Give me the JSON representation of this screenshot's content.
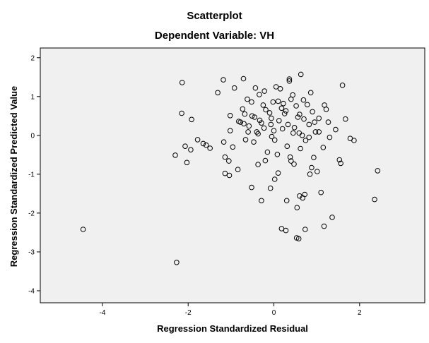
{
  "chart_data": {
    "type": "scatter",
    "title": "Scatterplot",
    "subtitle": "Dependent Variable: VH",
    "xlabel": "Regression Standardized Residual",
    "ylabel": "Regression Standardized Predicted Value",
    "xlim": [
      -5.45,
      3.52
    ],
    "ylim": [
      -4.31,
      2.25
    ],
    "xticks": [
      -4,
      -2,
      0,
      2
    ],
    "yticks": [
      2,
      1,
      0,
      -1,
      -2,
      -3,
      -4
    ],
    "grid": false,
    "colors": {
      "plot_bg": "#f0f0f0",
      "point": "#000000",
      "page_bg": "#ffffff"
    },
    "points": [
      [
        -4.45,
        -2.42
      ],
      [
        -2.27,
        -3.27
      ],
      [
        -2.3,
        -0.51
      ],
      [
        -2.14,
        1.36
      ],
      [
        -2.15,
        0.57
      ],
      [
        -2.07,
        -0.28
      ],
      [
        -2.03,
        -0.7
      ],
      [
        -1.94,
        -0.37
      ],
      [
        -1.92,
        0.41
      ],
      [
        -1.78,
        -0.11
      ],
      [
        -1.65,
        -0.21
      ],
      [
        -1.58,
        -0.25
      ],
      [
        -1.49,
        -0.33
      ],
      [
        -1.31,
        1.1
      ],
      [
        -1.18,
        1.43
      ],
      [
        -1.17,
        -0.17
      ],
      [
        -1.14,
        -0.56
      ],
      [
        -1.14,
        -0.98
      ],
      [
        -1.05,
        -0.66
      ],
      [
        -1.04,
        -1.03
      ],
      [
        -1.02,
        0.12
      ],
      [
        -1.02,
        0.51
      ],
      [
        -0.96,
        -0.3
      ],
      [
        -0.92,
        1.22
      ],
      [
        -0.82,
        0.36
      ],
      [
        -0.78,
        0.34
      ],
      [
        -0.73,
        0.68
      ],
      [
        -0.71,
        1.46
      ],
      [
        -0.7,
        0.3
      ],
      [
        -0.68,
        0.55
      ],
      [
        -0.66,
        -0.11
      ],
      [
        -0.62,
        0.93
      ],
      [
        -0.58,
        0.24
      ],
      [
        -0.51,
        0.5
      ],
      [
        -0.45,
        0.47
      ],
      [
        -0.4,
        0.09
      ],
      [
        -0.37,
        0.04
      ],
      [
        -0.33,
        0.39
      ],
      [
        -0.29,
        0.32
      ],
      [
        -0.25,
        0.78
      ],
      [
        -0.22,
        1.14
      ],
      [
        -0.19,
        0.66
      ],
      [
        -0.15,
        -0.43
      ],
      [
        -0.1,
        0.58
      ],
      [
        -0.07,
        0.28
      ],
      [
        -0.05,
        -0.03
      ],
      [
        -0.02,
        0.86
      ],
      [
        0.02,
        -0.12
      ],
      [
        0.05,
        1.25
      ],
      [
        0.08,
        -0.49
      ],
      [
        0.1,
        0.88
      ],
      [
        0.15,
        1.2
      ],
      [
        0.18,
        0.7
      ],
      [
        0.22,
        0.82
      ],
      [
        0.25,
        0.56
      ],
      [
        0.28,
        0.63
      ],
      [
        0.33,
        0.28
      ],
      [
        0.36,
        1.45
      ],
      [
        0.4,
        0.93
      ],
      [
        0.44,
        1.04
      ],
      [
        0.48,
        0.2
      ],
      [
        0.52,
        0.76
      ],
      [
        0.56,
        0.47
      ],
      [
        0.59,
        0.06
      ],
      [
        0.63,
        1.57
      ],
      [
        0.66,
        0.0
      ],
      [
        0.7,
        0.42
      ],
      [
        0.74,
        -0.13
      ],
      [
        0.78,
        0.79
      ],
      [
        0.82,
        0.28
      ],
      [
        0.86,
        1.1
      ],
      [
        0.9,
        0.61
      ],
      [
        0.93,
        -0.57
      ],
      [
        0.97,
        0.09
      ],
      [
        1.01,
        -0.93
      ],
      [
        1.05,
        0.44
      ],
      [
        1.1,
        -1.47
      ],
      [
        1.15,
        -0.31
      ],
      [
        1.22,
        0.67
      ],
      [
        1.27,
        0.34
      ],
      [
        1.3,
        -0.05
      ],
      [
        1.36,
        -2.11
      ],
      [
        1.44,
        0.15
      ],
      [
        1.53,
        -0.63
      ],
      [
        1.56,
        -0.72
      ],
      [
        1.6,
        1.29
      ],
      [
        1.67,
        0.42
      ],
      [
        1.78,
        -0.08
      ],
      [
        1.87,
        -0.13
      ],
      [
        2.35,
        -1.65
      ],
      [
        2.42,
        -0.91
      ],
      [
        -0.52,
        -1.34
      ],
      [
        -0.37,
        -0.75
      ],
      [
        -0.29,
        -1.68
      ],
      [
        -0.2,
        -0.65
      ],
      [
        -0.08,
        -1.36
      ],
      [
        0.02,
        -1.13
      ],
      [
        0.1,
        -0.97
      ],
      [
        0.18,
        -2.4
      ],
      [
        0.28,
        -2.45
      ],
      [
        0.38,
        -0.56
      ],
      [
        0.47,
        -0.74
      ],
      [
        0.54,
        -1.86
      ],
      [
        0.6,
        -1.56
      ],
      [
        0.67,
        -1.61
      ],
      [
        0.73,
        -2.42
      ],
      [
        0.84,
        -1.0
      ],
      [
        0.88,
        -0.83
      ],
      [
        0.53,
        -2.64
      ],
      [
        0.58,
        -2.66
      ],
      [
        0.72,
        -1.52
      ],
      [
        0.3,
        -1.68
      ],
      [
        1.17,
        -2.34
      ],
      [
        -0.52,
        0.86
      ],
      [
        -0.43,
        1.22
      ],
      [
        -0.34,
        1.05
      ],
      [
        -0.06,
        0.44
      ],
      [
        0.0,
        0.12
      ],
      [
        0.12,
        0.38
      ],
      [
        0.2,
        0.17
      ],
      [
        0.31,
        -0.28
      ],
      [
        0.4,
        -0.66
      ],
      [
        0.45,
        0.06
      ],
      [
        0.6,
        0.54
      ],
      [
        0.69,
        0.91
      ],
      [
        0.82,
        -0.05
      ],
      [
        0.95,
        0.34
      ],
      [
        1.05,
        0.09
      ],
      [
        1.18,
        0.78
      ],
      [
        -0.6,
        0.09
      ],
      [
        -0.84,
        -0.88
      ],
      [
        -0.47,
        -0.17
      ],
      [
        -0.23,
        0.19
      ],
      [
        0.36,
        1.4
      ],
      [
        0.62,
        -0.34
      ]
    ]
  }
}
